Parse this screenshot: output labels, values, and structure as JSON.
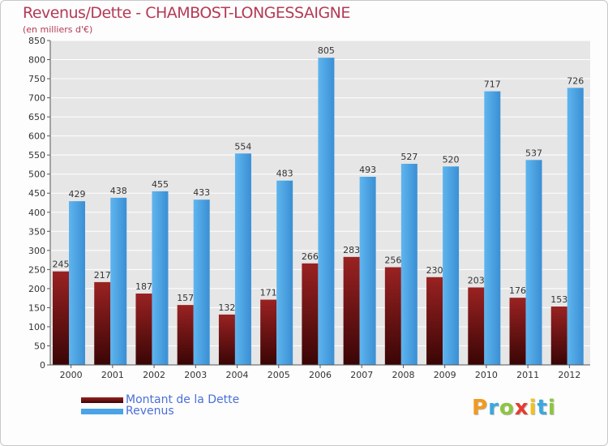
{
  "chart_data": {
    "type": "bar",
    "title": "Revenus/Dette - CHAMBOST-LONGESSAIGNE",
    "subtitle": "(en milliers d'€)",
    "categories": [
      "2000",
      "2001",
      "2002",
      "2003",
      "2004",
      "2005",
      "2006",
      "2007",
      "2008",
      "2009",
      "2010",
      "2011",
      "2012"
    ],
    "series": [
      {
        "name": "Montant de la Dette",
        "color": "#8b1a1a",
        "values": [
          245,
          217,
          187,
          157,
          132,
          171,
          266,
          283,
          256,
          230,
          203,
          176,
          153
        ]
      },
      {
        "name": "Revenus",
        "color": "#4aa3e6",
        "values": [
          429,
          438,
          455,
          433,
          554,
          483,
          805,
          493,
          527,
          520,
          717,
          537,
          726
        ]
      }
    ],
    "ylim": [
      0,
      850
    ],
    "yticks": [
      0,
      50,
      100,
      150,
      200,
      250,
      300,
      350,
      400,
      450,
      500,
      550,
      600,
      650,
      700,
      750,
      800,
      850
    ],
    "grid": true,
    "legend_position": "bottom-left"
  },
  "brand": {
    "letters": [
      "P",
      "r",
      "o",
      "x",
      "i",
      "t",
      "i"
    ],
    "colors": [
      "#f29a1e",
      "#3aa8e0",
      "#8cc63f",
      "#e63b2e",
      "#f2c11e",
      "#3aa8e0",
      "#8cc63f"
    ]
  }
}
